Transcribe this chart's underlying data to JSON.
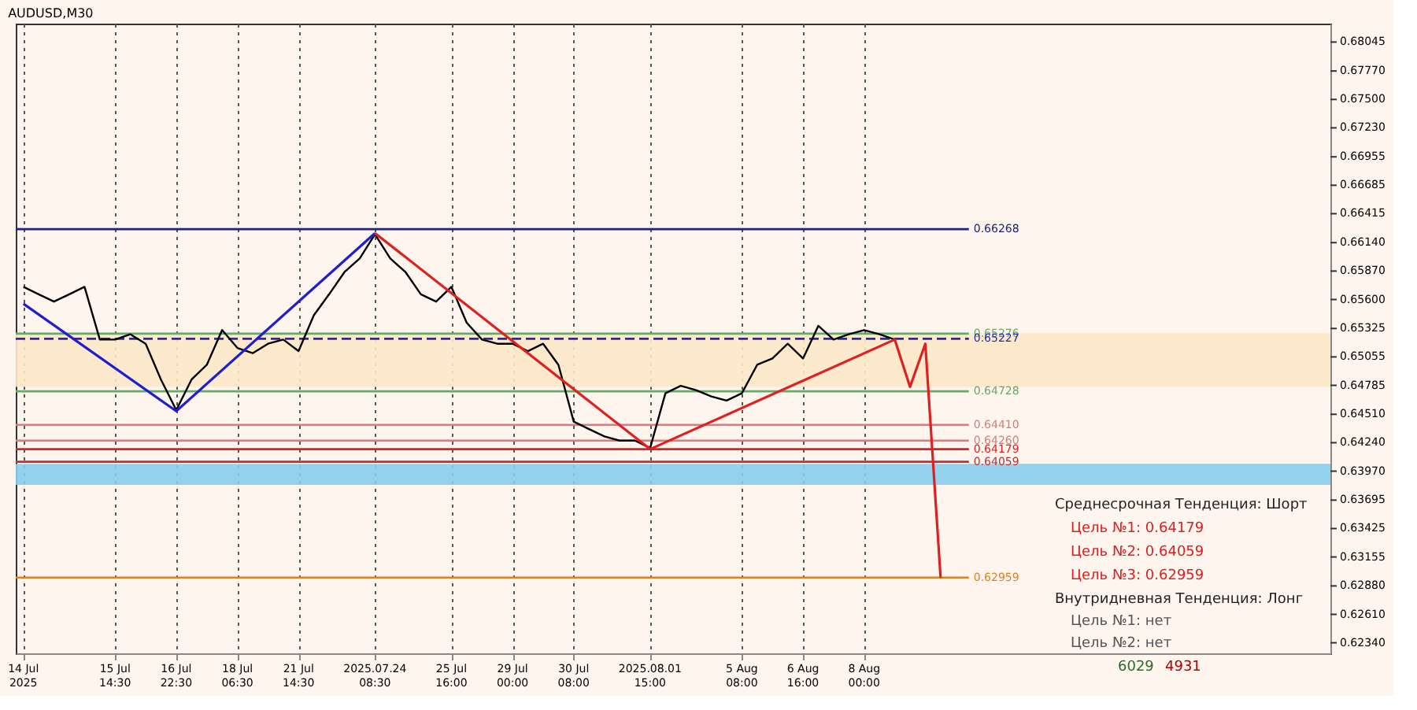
{
  "chart_data": {
    "type": "line",
    "title": "AUDUSD,M30",
    "categories": [
      "14 Jul 2025",
      null,
      null,
      null,
      null,
      null,
      "15 Jul 14:30",
      null,
      null,
      null,
      "16 Jul 22:30",
      null,
      null,
      null,
      "18 Jul 06:30",
      null,
      null,
      null,
      "21 Jul 14:30",
      null,
      null,
      null,
      null,
      "2025.07.24 08:30",
      null,
      null,
      null,
      null,
      "25 Jul 16:00",
      null,
      null,
      null,
      "29 Jul 00:00",
      null,
      null,
      null,
      "30 Jul 08:00",
      null,
      null,
      null,
      null,
      "2025.08.01 15:00",
      null,
      null,
      null,
      null,
      null,
      "5 Aug 08:00",
      null,
      null,
      null,
      "6 Aug 16:00",
      null,
      null,
      null,
      "8 Aug 00:00",
      null,
      null,
      null,
      null,
      null,
      null,
      null,
      null,
      null,
      null,
      null,
      null,
      null,
      null,
      null,
      null,
      null,
      null,
      null,
      null,
      null,
      null,
      null,
      null,
      null,
      null,
      null,
      null,
      null,
      null
    ],
    "series": [
      {
        "color": "#000000",
        "values": [
          0.6572,
          0.6565,
          0.6558,
          0.6565,
          0.6572,
          0.6522,
          0.6522,
          0.6527,
          0.6518,
          0.6484,
          0.6455,
          0.6484,
          0.6498,
          0.6531,
          0.6514,
          0.6509,
          0.6518,
          0.6522,
          0.6511,
          0.6545,
          0.6565,
          0.6586,
          0.6599,
          0.6622,
          0.6599,
          0.6586,
          0.6565,
          0.6558,
          0.6572,
          0.6538,
          0.6522,
          0.6518,
          0.6518,
          0.6511,
          0.6518,
          0.6498,
          0.6444,
          0.6437,
          0.643,
          0.6426,
          0.6426,
          0.6419,
          0.6471,
          0.6478,
          0.6474,
          0.6468,
          0.6464,
          0.6471,
          0.6498,
          0.6504,
          0.6518,
          0.6504,
          0.6535,
          0.6522,
          0.6527,
          0.6531,
          0.6527,
          0.6522,
          null,
          null,
          null,
          null,
          null,
          null,
          null,
          null,
          null,
          null,
          null,
          null,
          null,
          null,
          null,
          null,
          null,
          null,
          null,
          null,
          null,
          null,
          null,
          null,
          null,
          null,
          null,
          null
        ]
      },
      {
        "color": "#1f1fd0",
        "values": [
          0.6556,
          null,
          null,
          null,
          null,
          null,
          null,
          null,
          null,
          null,
          0.6454,
          null,
          null,
          null,
          null,
          null,
          null,
          null,
          null,
          null,
          null,
          null,
          null,
          0.6623,
          null,
          null,
          null,
          null,
          null,
          null,
          null,
          null,
          null,
          null,
          null,
          null,
          null,
          null,
          null,
          null,
          null,
          null,
          null,
          null,
          null,
          null,
          null,
          null,
          null,
          null,
          null,
          null,
          null,
          null,
          null,
          null,
          null,
          null,
          null,
          null,
          null,
          null,
          null,
          null,
          null,
          null,
          null,
          null,
          null,
          null,
          null,
          null,
          null,
          null,
          null,
          null,
          null,
          null,
          null,
          null,
          null,
          null,
          null,
          null,
          null,
          null
        ]
      },
      {
        "color": "#e02020",
        "values": [
          null,
          null,
          null,
          null,
          null,
          null,
          null,
          null,
          null,
          null,
          null,
          null,
          null,
          null,
          null,
          null,
          null,
          null,
          null,
          null,
          null,
          null,
          null,
          0.6623,
          null,
          null,
          null,
          null,
          null,
          null,
          null,
          null,
          null,
          null,
          null,
          null,
          null,
          null,
          null,
          null,
          null,
          0.64179,
          null,
          null,
          null,
          null,
          null,
          null,
          null,
          null,
          null,
          null,
          null,
          null,
          null,
          null,
          null,
          0.6522,
          0.6477,
          0.6518,
          0.62959,
          null,
          null,
          null,
          null,
          null,
          null,
          null,
          null,
          null,
          null,
          null,
          null,
          null,
          null,
          null,
          null,
          null,
          null,
          null,
          null,
          null,
          null,
          null,
          null,
          null
        ]
      }
    ],
    "ylim": [
      0.6224,
      0.6822
    ],
    "yticks": [
      {
        "value": 0.6234,
        "label": "0.62340"
      },
      {
        "value": 0.6261,
        "label": "0.62610"
      },
      {
        "value": 0.6288,
        "label": "0.62880"
      },
      0.63155,
      0.63425,
      0.63695,
      {
        "value": 0.6397,
        "label": "0.63970"
      },
      {
        "value": 0.6424,
        "label": "0.64240"
      },
      {
        "value": 0.6451,
        "label": "0.64510"
      },
      0.64785,
      0.65055,
      0.65325,
      {
        "value": 0.656,
        "label": "0.65600"
      },
      {
        "value": 0.6587,
        "label": "0.65870"
      },
      {
        "value": 0.6614,
        "label": "0.66140"
      },
      0.66415,
      0.66685,
      0.66955,
      {
        "value": 0.6723,
        "label": "0.67230"
      },
      {
        "value": 0.675,
        "label": "0.67500"
      },
      {
        "value": 0.6777,
        "label": "0.67770"
      },
      0.68045
    ],
    "ref_lines": [
      {
        "axis": "y",
        "value": 0.66268,
        "label": "0.66268",
        "color": "#1a237e",
        "line_style": "solid"
      },
      {
        "axis": "y",
        "value": 0.65276,
        "label": "0.65276",
        "color": "#6aa86a",
        "line_style": "solid"
      },
      {
        "axis": "y",
        "value": 0.65227,
        "label": "0.65227",
        "color": "#2a2aa8",
        "line_style": "dashed"
      },
      {
        "axis": "y",
        "value": 0.64728,
        "label": "0.64728",
        "color": "#6aa86a",
        "line_style": "solid"
      },
      {
        "axis": "y",
        "value": 0.6441,
        "label": "0.64410",
        "color": "#d08080",
        "line_style": "solid"
      },
      {
        "axis": "y",
        "value": 0.6426,
        "label": "0.64260",
        "color": "#d08080",
        "line_style": "solid"
      },
      {
        "axis": "y",
        "value": 0.64179,
        "label": "0.64179",
        "color": "#e02020",
        "line_style": "solid"
      },
      {
        "axis": "y",
        "value": 0.64059,
        "label": "0.64059",
        "color": "#c03030",
        "line_style": "solid"
      },
      {
        "axis": "y",
        "value": 0.62959,
        "label": "0.62959",
        "color": "#e08020",
        "line_style": "solid"
      }
    ],
    "bands": [
      {
        "axis": "y",
        "from": 0.6384,
        "to": 0.6404,
        "color": "#87ceeb"
      },
      {
        "axis": "y",
        "from": 0.6477,
        "to": 0.6528,
        "color": "#fde9c8"
      }
    ],
    "annotations": [
      "Среднесрочная Тенденция: Шорт",
      "Цель №1: 0.64179",
      "Цель №2: 0.64059",
      "Цель №3: 0.62959",
      "Внутридневная Тенденция: Лонг",
      "Цель №1: нет",
      "Цель №2: нет",
      "6029",
      "4931"
    ],
    "grid": "x"
  }
}
